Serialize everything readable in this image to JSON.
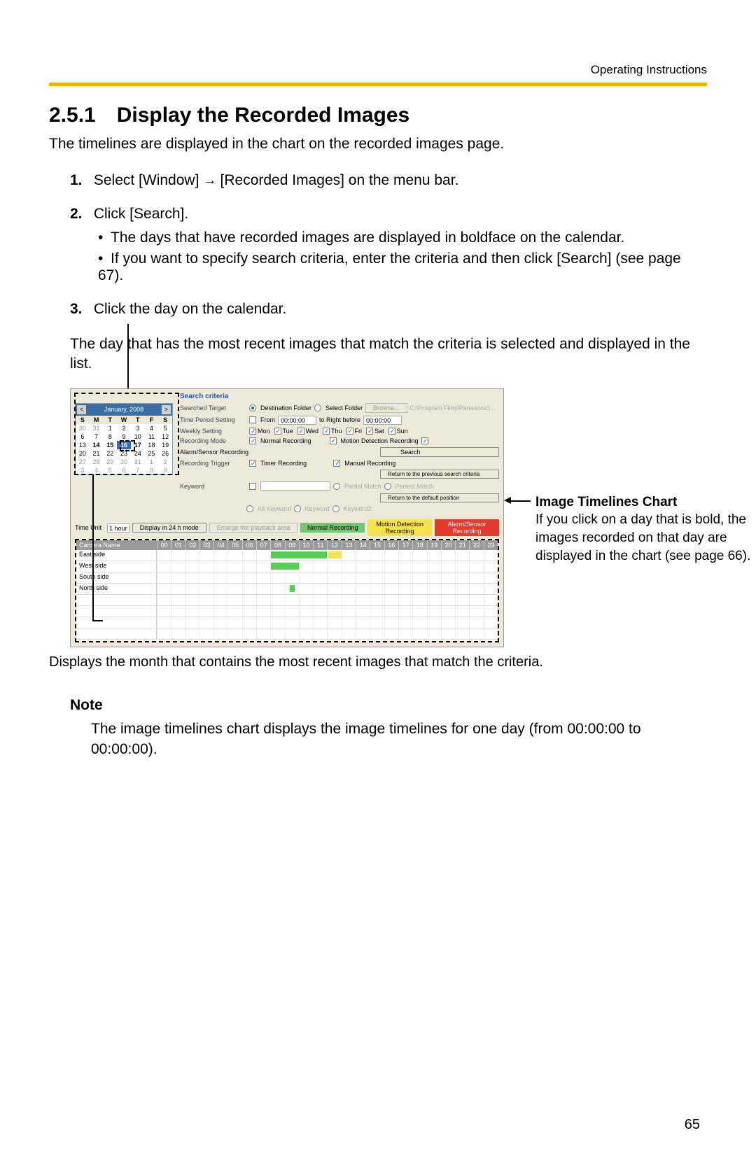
{
  "header": {
    "right": "Operating Instructions"
  },
  "section": {
    "number": "2.5.1",
    "title": "Display the Recorded Images"
  },
  "intro": "The timelines are displayed in the chart on the recorded images page.",
  "steps": {
    "s1_num": "1.",
    "s1_a": "Select [Window]",
    "s1_b": "[Recorded Images] on the menu bar.",
    "s2_num": "2.",
    "s2": "Click [Search].",
    "s2_b1": "The days that have recorded images are displayed in boldface on the calendar.",
    "s2_b2": "If you want to specify search criteria, enter the criteria and then click [Search] (see page 67).",
    "s3_num": "3.",
    "s3": "Click the day on the calendar."
  },
  "after_steps": "The day that has the most recent images that match the criteria is selected and displayed in the list.",
  "shot": {
    "criteria_title": "Search criteria",
    "cal_month": "January, 2008",
    "dow": [
      "S",
      "M",
      "T",
      "W",
      "T",
      "F",
      "S"
    ],
    "days": [
      [
        "30",
        "31",
        "1",
        "2",
        "3",
        "4",
        "5"
      ],
      [
        "6",
        "7",
        "8",
        "9",
        "10",
        "11",
        "12"
      ],
      [
        "13",
        "14",
        "15",
        "16",
        "17",
        "18",
        "19"
      ],
      [
        "20",
        "21",
        "22",
        "23",
        "24",
        "25",
        "26"
      ],
      [
        "27",
        "28",
        "29",
        "30",
        "31",
        "1",
        "2"
      ],
      [
        "3",
        "4",
        "5",
        "6",
        "7",
        "8",
        "9"
      ]
    ],
    "bold_days": [
      "14",
      "15",
      "16",
      "17"
    ],
    "sel_day": "16",
    "dim_rows": [
      0,
      4,
      5
    ],
    "row_target": "Searched Target",
    "dest_folder": "Destination Folder",
    "select_folder": "Select Folder",
    "browse": "Browse...",
    "path_hint": "C:\\Program Files\\Panasonic\\...",
    "row_time": "Time Period Setting",
    "from": "From",
    "from_val": "00:00:00",
    "to": "to  Right before",
    "to_val": "00:00:00",
    "row_weekly": "Weekly Setting",
    "wk": [
      "Mon",
      "Tue",
      "Wed",
      "Thu",
      "Fri",
      "Sat",
      "Sun"
    ],
    "row_mode": "Recording Mode",
    "mode1": "Normal Recording",
    "mode2": "Motion Detection Recording",
    "mode3": "Alarm/Sensor Recording",
    "row_trigger": "Recording Trigger",
    "trig1": "Timer Recording",
    "trig2": "Manual Recording",
    "row_keyword": "Keyword",
    "kw1": "All Keyword",
    "kw2": "Keyword",
    "kw3": "Keyword2",
    "partial": "Partial Match",
    "perfect": "Perfect Match",
    "btn_search": "Search",
    "btn_return_prev": "Return to the previous search criteria",
    "btn_return_def": "Return to the default position",
    "tl_timeunit_lbl": "Time Unit",
    "tl_timeunit_val": "1 hour",
    "tl_24h": "Display in 24 h mode",
    "tl_enlarge": "Enlarge the playback area",
    "leg_normal": "Normal Recording",
    "leg_motion": "Motion Detection Recording",
    "leg_alarm": "Alarm/Sensor Recording",
    "cam_header": "Camera Name",
    "hours": [
      "00",
      "01",
      "02",
      "03",
      "04",
      "05",
      "06",
      "07",
      "08",
      "09",
      "10",
      "11",
      "12",
      "13",
      "14",
      "15",
      "16",
      "17",
      "18",
      "19",
      "20",
      "21",
      "22",
      "23"
    ],
    "cameras": [
      "East side",
      "West side",
      "South side",
      "North side"
    ],
    "bars": [
      {
        "row": 0,
        "start": 8,
        "end": 12,
        "cls": "g"
      },
      {
        "row": 0,
        "start": 12,
        "end": 13,
        "cls": "y"
      },
      {
        "row": 1,
        "start": 8,
        "end": 10,
        "cls": "g"
      },
      {
        "row": 3,
        "start": 9.3,
        "end": 9.7,
        "cls": "g"
      }
    ]
  },
  "callout_right_title": "Image Timelines Chart",
  "callout_right_body": "If you click on a day that is bold, the images recorded on that day are displayed in the chart (see page 66).",
  "below_shot": "Displays the month that contains the most recent images that match the criteria.",
  "note_title": "Note",
  "note_body": "The image timelines chart displays the image timelines for one day (from 00:00:00 to 00:00:00).",
  "page_number": "65"
}
